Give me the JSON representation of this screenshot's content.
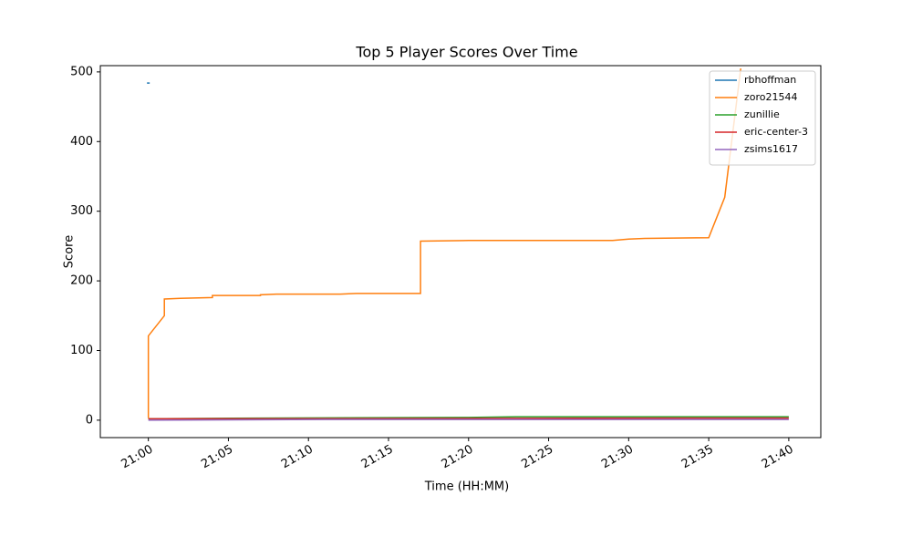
{
  "chart_data": {
    "type": "line",
    "title": "Top 5 Player Scores Over Time",
    "x_label": "Time (HH:MM)",
    "y_label": "Score",
    "xlim": [
      "20:57",
      "21:42"
    ],
    "xticks": [
      "21:00",
      "21:05",
      "21:10",
      "21:15",
      "21:20",
      "21:25",
      "21:30",
      "21:35",
      "21:40"
    ],
    "ylim": [
      -25,
      509
    ],
    "yticks": [
      0,
      100,
      200,
      300,
      400,
      500
    ],
    "grid": false,
    "legend": "upper right",
    "series": [
      {
        "name": "rbhoffman",
        "color": "#1f77b4",
        "x": [
          "21:00"
        ],
        "values": [
          484
        ]
      },
      {
        "name": "zoro21544",
        "color": "#ff7f0e",
        "x": [
          "21:00",
          "21:00",
          "21:00",
          "21:01",
          "21:01",
          "21:02",
          "21:04",
          "21:04",
          "21:07",
          "21:07",
          "21:08",
          "21:12",
          "21:13",
          "21:17",
          "21:17",
          "21:17",
          "21:20",
          "21:29",
          "21:30",
          "21:31",
          "21:35",
          "21:36",
          "21:37"
        ],
        "values": [
          3,
          120,
          121,
          150,
          174,
          175,
          176,
          179,
          179,
          180,
          181,
          181,
          182,
          182,
          183,
          257,
          258,
          258,
          260,
          261,
          262,
          320,
          505
        ]
      },
      {
        "name": "zunillie",
        "color": "#2ca02c",
        "x": [
          "21:00",
          "21:07",
          "21:20",
          "21:23",
          "21:40"
        ],
        "values": [
          2,
          3,
          4,
          5,
          5
        ]
      },
      {
        "name": "eric-center-3",
        "color": "#d62728",
        "x": [
          "21:00",
          "21:35",
          "21:40"
        ],
        "values": [
          2,
          3,
          3
        ]
      },
      {
        "name": "zsims1617",
        "color": "#9467bd",
        "x": [
          "21:00",
          "21:11",
          "21:40"
        ],
        "values": [
          0,
          1,
          1
        ]
      }
    ]
  }
}
